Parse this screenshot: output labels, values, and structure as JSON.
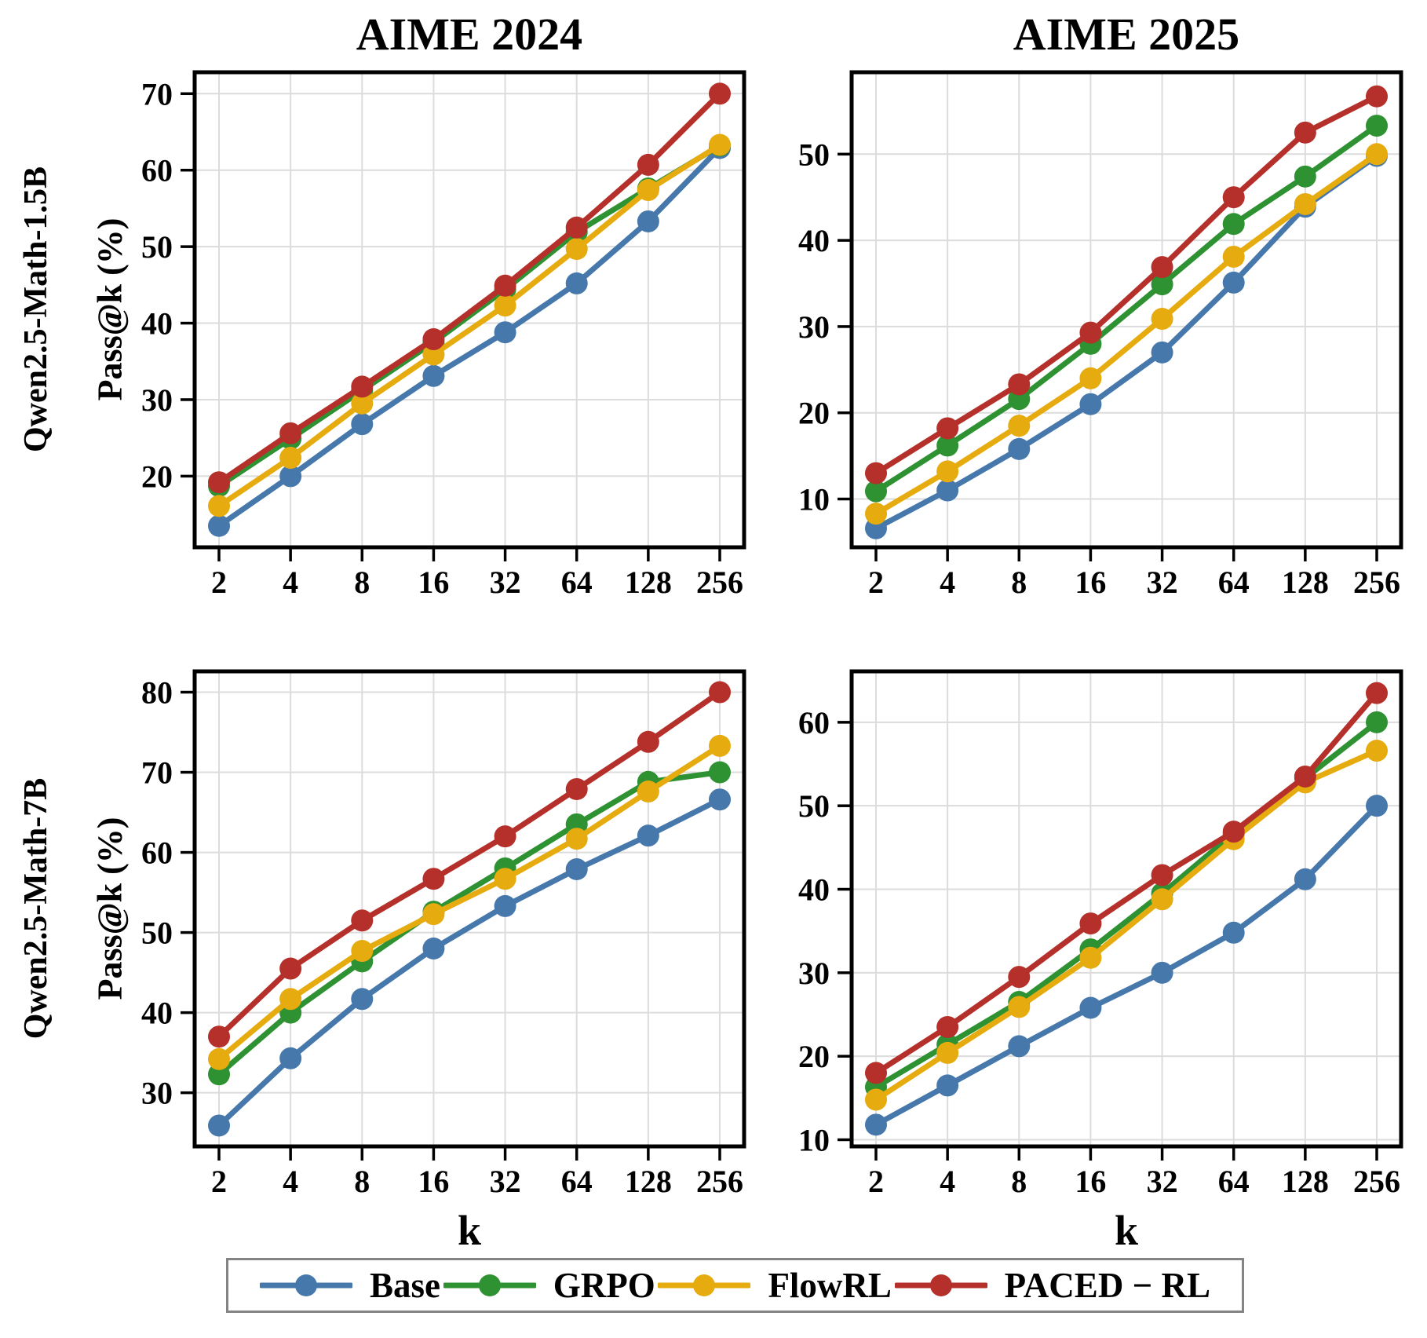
{
  "figure": {
    "column_titles": [
      "AIME 2024",
      "AIME 2025"
    ],
    "row_labels": [
      "Qwen2.5-Math-1.5B",
      "Qwen2.5-Math-7B"
    ],
    "y_axis_label": "Pass@k (%)",
    "x_axis_label": "k",
    "grid": true,
    "legend_position": "bottom",
    "colors": {
      "base": "#4678AC",
      "grpo": "#2E9132",
      "flowrl": "#E5AB0F",
      "paced_rl": "#B5302A",
      "gridline": "#DCDCDC",
      "axis": "#000000",
      "legend_border": "#848484"
    },
    "legend": [
      {
        "name": "Base",
        "color": "#4678AC"
      },
      {
        "name": "GRPO",
        "color": "#2E9132"
      },
      {
        "name": "FlowRL",
        "color": "#E5AB0F"
      },
      {
        "name": "PACED − RL",
        "color": "#B5302A"
      }
    ]
  },
  "chart_data": [
    {
      "type": "line",
      "col_title": "AIME 2024",
      "row_label": "Qwen2.5-Math-1.5B",
      "xlabel": "",
      "ylabel": "Pass@k (%)",
      "x_scale": "log2",
      "x": [
        2,
        4,
        8,
        16,
        32,
        64,
        128,
        256
      ],
      "yticks": [
        20,
        30,
        40,
        50,
        60,
        70
      ],
      "ylim": [
        10.7,
        72.8
      ],
      "series": [
        {
          "name": "Base",
          "color": "#4678AC",
          "values": [
            13.5,
            20.0,
            26.8,
            33.1,
            38.8,
            45.2,
            53.3,
            62.9
          ]
        },
        {
          "name": "GRPO",
          "color": "#2E9132",
          "values": [
            18.7,
            24.9,
            31.2,
            37.5,
            44.4,
            51.9,
            57.6,
            63.2
          ]
        },
        {
          "name": "FlowRL",
          "color": "#E5AB0F",
          "values": [
            16.1,
            22.4,
            29.5,
            35.9,
            42.3,
            49.7,
            57.4,
            63.3
          ]
        },
        {
          "name": "PACED − RL",
          "color": "#B5302A",
          "values": [
            19.2,
            25.6,
            31.7,
            37.9,
            44.9,
            52.5,
            60.7,
            70.0
          ]
        }
      ]
    },
    {
      "type": "line",
      "col_title": "AIME 2025",
      "row_label": "Qwen2.5-Math-1.5B",
      "xlabel": "",
      "ylabel": "",
      "x_scale": "log2",
      "x": [
        2,
        4,
        8,
        16,
        32,
        64,
        128,
        256
      ],
      "yticks": [
        10,
        20,
        30,
        40,
        50
      ],
      "ylim": [
        4.4,
        59.5
      ],
      "series": [
        {
          "name": "Base",
          "color": "#4678AC",
          "values": [
            6.6,
            11.0,
            15.8,
            21.0,
            27.0,
            35.1,
            43.9,
            49.8
          ]
        },
        {
          "name": "GRPO",
          "color": "#2E9132",
          "values": [
            10.9,
            16.2,
            21.6,
            28.0,
            34.9,
            41.9,
            47.4,
            53.3
          ]
        },
        {
          "name": "FlowRL",
          "color": "#E5AB0F",
          "values": [
            8.3,
            13.2,
            18.5,
            24.0,
            30.9,
            38.1,
            44.2,
            50.0
          ]
        },
        {
          "name": "PACED − RL",
          "color": "#B5302A",
          "values": [
            13.0,
            18.2,
            23.3,
            29.3,
            36.9,
            45.0,
            52.5,
            56.7
          ]
        }
      ]
    },
    {
      "type": "line",
      "col_title": "AIME 2024",
      "row_label": "Qwen2.5-Math-7B",
      "xlabel": "k",
      "ylabel": "Pass@k (%)",
      "x_scale": "log2",
      "x": [
        2,
        4,
        8,
        16,
        32,
        64,
        128,
        256
      ],
      "yticks": [
        30,
        40,
        50,
        60,
        70,
        80
      ],
      "ylim": [
        23.3,
        82.6
      ],
      "series": [
        {
          "name": "Base",
          "color": "#4678AC",
          "values": [
            25.9,
            34.3,
            41.7,
            48.0,
            53.3,
            57.9,
            62.1,
            66.6
          ]
        },
        {
          "name": "GRPO",
          "color": "#2E9132",
          "values": [
            32.3,
            40.0,
            46.4,
            52.6,
            58.0,
            63.5,
            68.8,
            70.0
          ]
        },
        {
          "name": "FlowRL",
          "color": "#E5AB0F",
          "values": [
            34.2,
            41.7,
            47.7,
            52.3,
            56.7,
            61.7,
            67.6,
            73.3
          ]
        },
        {
          "name": "PACED − RL",
          "color": "#B5302A",
          "values": [
            37.0,
            45.5,
            51.5,
            56.7,
            62.0,
            67.9,
            73.8,
            80.0
          ]
        }
      ]
    },
    {
      "type": "line",
      "col_title": "AIME 2025",
      "row_label": "Qwen2.5-Math-7B",
      "xlabel": "k",
      "ylabel": "",
      "x_scale": "log2",
      "x": [
        2,
        4,
        8,
        16,
        32,
        64,
        128,
        256
      ],
      "yticks": [
        10,
        20,
        30,
        40,
        50,
        60
      ],
      "ylim": [
        9.2,
        66.1
      ],
      "series": [
        {
          "name": "Base",
          "color": "#4678AC",
          "values": [
            11.8,
            16.5,
            21.2,
            25.8,
            30.0,
            34.8,
            41.2,
            50.0
          ]
        },
        {
          "name": "GRPO",
          "color": "#2E9132",
          "values": [
            16.3,
            21.4,
            26.5,
            32.8,
            39.5,
            46.7,
            53.3,
            60.0
          ]
        },
        {
          "name": "FlowRL",
          "color": "#E5AB0F",
          "values": [
            14.8,
            20.4,
            25.9,
            31.8,
            38.8,
            46.0,
            52.8,
            56.6
          ]
        },
        {
          "name": "PACED − RL",
          "color": "#B5302A",
          "values": [
            18.0,
            23.5,
            29.5,
            35.9,
            41.7,
            46.9,
            53.5,
            63.5
          ]
        }
      ]
    }
  ]
}
